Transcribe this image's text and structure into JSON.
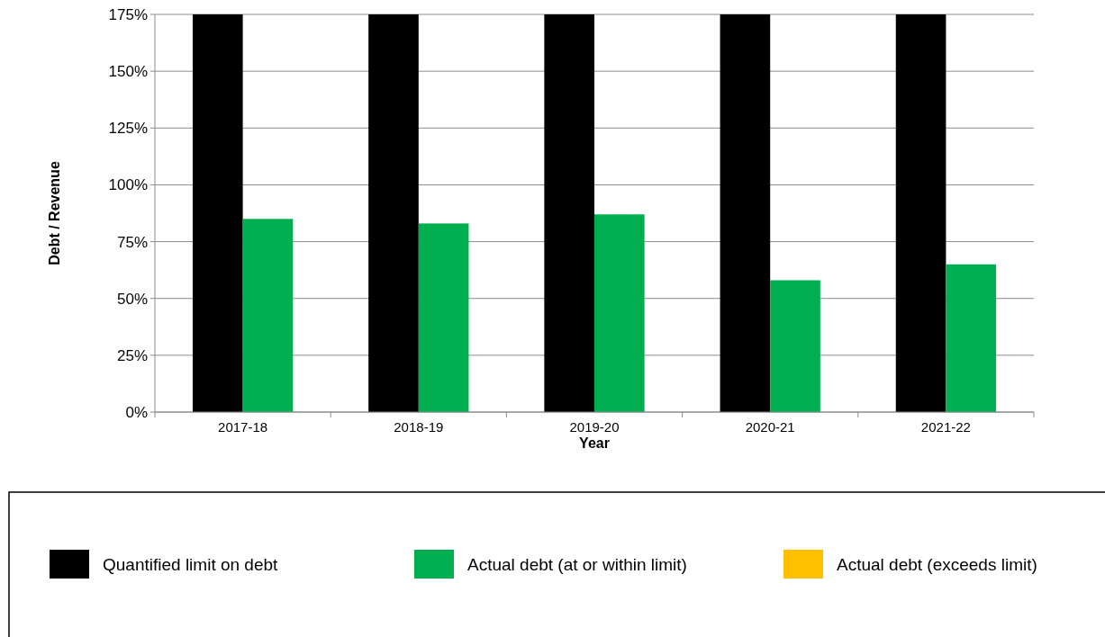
{
  "chart_data": {
    "type": "bar",
    "xlabel": "Year",
    "ylabel": "Debt / Revenue",
    "categories": [
      "2017-18",
      "2018-19",
      "2019-20",
      "2020-21",
      "2021-22"
    ],
    "series": [
      {
        "name": "Quantified limit on debt",
        "color": "#000000",
        "values": [
          175,
          175,
          175,
          175,
          175
        ]
      },
      {
        "name": "Actual debt (at or within limit)",
        "color": "#00b050",
        "values": [
          85,
          83,
          87,
          58,
          65
        ]
      },
      {
        "name": "Actual debt (exceeds limit)",
        "color": "#ffc000",
        "values": [
          null,
          null,
          null,
          null,
          null
        ]
      }
    ],
    "ylim": [
      0,
      175
    ],
    "yticks": [
      {
        "value": 0,
        "label": "0%"
      },
      {
        "value": 25,
        "label": "25%"
      },
      {
        "value": 50,
        "label": "50%"
      },
      {
        "value": 75,
        "label": "75%"
      },
      {
        "value": 100,
        "label": "100%"
      },
      {
        "value": 125,
        "label": "125%"
      },
      {
        "value": 150,
        "label": "150%"
      },
      {
        "value": 175,
        "label": "175%"
      }
    ],
    "grid": "y",
    "legend": "bottom"
  }
}
